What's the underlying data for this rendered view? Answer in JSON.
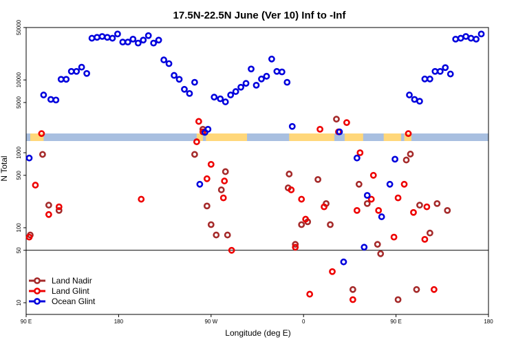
{
  "chart_data": {
    "type": "scatter",
    "title": "17.5N-22.5N June (Ver 10)   Inf to -Inf",
    "xlabel": "Longitude (deg E)",
    "ylabel": "N Total",
    "x_ticks": [
      {
        "value": 90,
        "label": "90 E"
      },
      {
        "value": 180,
        "label": "180"
      },
      {
        "value": 270,
        "label": "90 W"
      },
      {
        "value": 360,
        "label": "0"
      },
      {
        "value": 450,
        "label": "90 E"
      },
      {
        "value": 540,
        "label": "180"
      }
    ],
    "xlim": [
      90,
      540
    ],
    "y_scale": "log",
    "y_upper_ticks": [
      {
        "value": 5000,
        "label": "5000"
      },
      {
        "value": 10000,
        "label": "10000"
      },
      {
        "value": 50000,
        "label": "50000"
      }
    ],
    "y_lower_ticks": [
      {
        "value": 10,
        "label": "10"
      },
      {
        "value": 50,
        "label": "50"
      },
      {
        "value": 100,
        "label": "100"
      },
      {
        "value": 500,
        "label": "500"
      },
      {
        "value": 1000,
        "label": "1000"
      }
    ],
    "reference_line": 50,
    "legend_position": "bottom-left",
    "colors": {
      "land_nadir": "#a52a2a",
      "land_glint": "#ee0000",
      "ocean_glint": "#0000dd",
      "map_land": "#ffd77a",
      "map_ocean": "#a8bfe0"
    },
    "series": [
      {
        "name": "Land Nadir",
        "points": [
          [
            94,
            80
          ],
          [
            106,
            950
          ],
          [
            112,
            200
          ],
          [
            122,
            170
          ],
          [
            254,
            950
          ],
          [
            262,
            2200
          ],
          [
            266,
            195
          ],
          [
            270,
            110
          ],
          [
            275,
            80
          ],
          [
            280,
            320
          ],
          [
            284,
            560
          ],
          [
            286,
            80
          ],
          [
            345,
            340
          ],
          [
            346,
            520
          ],
          [
            352,
            60
          ],
          [
            358,
            110
          ],
          [
            364,
            120
          ],
          [
            374,
            440
          ],
          [
            382,
            210
          ],
          [
            386,
            110
          ],
          [
            392,
            3000
          ],
          [
            408,
            15
          ],
          [
            414,
            380
          ],
          [
            422,
            210
          ],
          [
            432,
            60
          ],
          [
            435,
            45
          ],
          [
            460,
            800
          ],
          [
            464,
            960
          ],
          [
            490,
            210
          ],
          [
            500,
            170
          ],
          [
            452,
            11
          ],
          [
            470,
            15
          ],
          [
            473,
            200
          ],
          [
            483,
            85
          ]
        ],
        "color": "#a52a2a"
      },
      {
        "name": "Land Glint",
        "points": [
          [
            93,
            75
          ],
          [
            99,
            370
          ],
          [
            105,
            1800
          ],
          [
            112,
            150
          ],
          [
            122,
            190
          ],
          [
            202,
            240
          ],
          [
            256,
            1400
          ],
          [
            258,
            2800
          ],
          [
            262,
            1900
          ],
          [
            266,
            450
          ],
          [
            270,
            700
          ],
          [
            282,
            250
          ],
          [
            283,
            420
          ],
          [
            290,
            50
          ],
          [
            348,
            320
          ],
          [
            352,
            55
          ],
          [
            358,
            240
          ],
          [
            362,
            130
          ],
          [
            366,
            13
          ],
          [
            376,
            2200
          ],
          [
            380,
            190
          ],
          [
            388,
            26
          ],
          [
            394,
            1900
          ],
          [
            402,
            2700
          ],
          [
            408,
            11
          ],
          [
            412,
            170
          ],
          [
            415,
            1000
          ],
          [
            426,
            240
          ],
          [
            428,
            500
          ],
          [
            433,
            170
          ],
          [
            448,
            75
          ],
          [
            452,
            250
          ],
          [
            458,
            380
          ],
          [
            462,
            1800
          ],
          [
            467,
            160
          ],
          [
            480,
            190
          ],
          [
            478,
            70
          ],
          [
            487,
            15
          ]
        ],
        "color": "#ee0000"
      },
      {
        "name": "Ocean Glint",
        "points": [
          [
            93,
            850
          ],
          [
            107,
            6300
          ],
          [
            114,
            5500
          ],
          [
            119,
            5400
          ],
          [
            124,
            10200
          ],
          [
            129,
            10200
          ],
          [
            134,
            13000
          ],
          [
            139,
            13000
          ],
          [
            144,
            14800
          ],
          [
            149,
            12200
          ],
          [
            154,
            36000
          ],
          [
            159,
            37000
          ],
          [
            164,
            38000
          ],
          [
            169,
            37000
          ],
          [
            174,
            36000
          ],
          [
            179,
            41000
          ],
          [
            184,
            32000
          ],
          [
            189,
            32000
          ],
          [
            194,
            35000
          ],
          [
            199,
            31000
          ],
          [
            204,
            34000
          ],
          [
            209,
            39000
          ],
          [
            214,
            31000
          ],
          [
            219,
            34000
          ],
          [
            224,
            18500
          ],
          [
            229,
            16500
          ],
          [
            234,
            11500
          ],
          [
            239,
            10200
          ],
          [
            244,
            7500
          ],
          [
            249,
            6600
          ],
          [
            254,
            9300
          ],
          [
            259,
            380
          ],
          [
            264,
            2000
          ],
          [
            267,
            2200
          ],
          [
            273,
            5900
          ],
          [
            279,
            5600
          ],
          [
            284,
            5100
          ],
          [
            289,
            6300
          ],
          [
            294,
            7000
          ],
          [
            299,
            8000
          ],
          [
            304,
            9000
          ],
          [
            309,
            14000
          ],
          [
            314,
            8500
          ],
          [
            319,
            10300
          ],
          [
            324,
            11200
          ],
          [
            329,
            19000
          ],
          [
            334,
            13000
          ],
          [
            339,
            12800
          ],
          [
            344,
            9300
          ],
          [
            349,
            2400
          ],
          [
            395,
            1900
          ],
          [
            399,
            35
          ],
          [
            412,
            850
          ],
          [
            419,
            55
          ],
          [
            422,
            270
          ],
          [
            436,
            140
          ],
          [
            444,
            380
          ],
          [
            449,
            820
          ],
          [
            463,
            6300
          ],
          [
            468,
            5500
          ],
          [
            473,
            5200
          ],
          [
            478,
            10300
          ],
          [
            483,
            10300
          ],
          [
            488,
            13000
          ],
          [
            493,
            13000
          ],
          [
            498,
            14600
          ],
          [
            503,
            12000
          ],
          [
            508,
            35000
          ],
          [
            513,
            36000
          ],
          [
            518,
            38000
          ],
          [
            523,
            36000
          ],
          [
            528,
            35000
          ],
          [
            533,
            41000
          ]
        ],
        "color": "#0000dd"
      }
    ]
  }
}
